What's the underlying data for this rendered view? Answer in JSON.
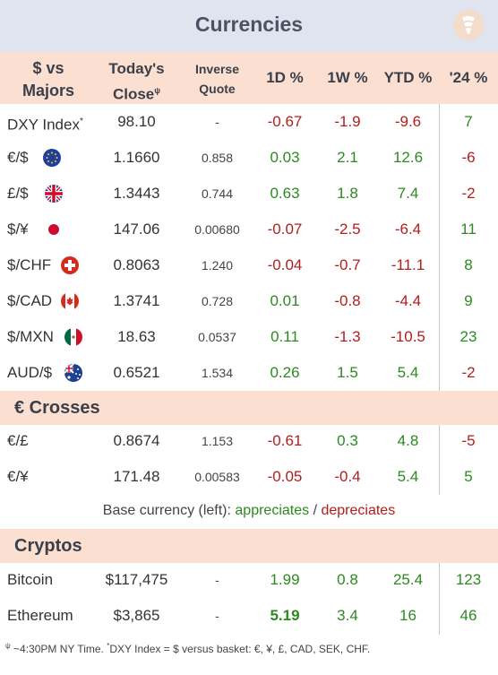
{
  "title": "Currencies",
  "headers": {
    "pair_line1": "$ vs",
    "pair_line2": "Majors",
    "close_line1": "Today's",
    "close_line2": "Close",
    "close_mark": "ψ",
    "inverse_line1": "Inverse",
    "inverse_line2": "Quote",
    "d1": "1D %",
    "w1": "1W %",
    "ytd": "YTD %",
    "y24": "'24 %"
  },
  "majors": [
    {
      "name": "DXY Index",
      "mark": "*",
      "flag": "",
      "close": "98.10",
      "inverse": "-",
      "d1": "-0.67",
      "w1": "-1.9",
      "ytd": "-9.6",
      "y24": "7"
    },
    {
      "name": "€/$",
      "mark": "",
      "flag": "eu-flag-icon",
      "close": "1.1660",
      "inverse": "0.858",
      "d1": "0.03",
      "w1": "2.1",
      "ytd": "12.6",
      "y24": "-6"
    },
    {
      "name": "£/$",
      "mark": "",
      "flag": "uk-flag-icon",
      "close": "1.3443",
      "inverse": "0.744",
      "d1": "0.63",
      "w1": "1.8",
      "ytd": "7.4",
      "y24": "-2"
    },
    {
      "name": "$/¥",
      "mark": "",
      "flag": "japan-flag-icon",
      "close": "147.06",
      "inverse": "0.00680",
      "d1": "-0.07",
      "w1": "-2.5",
      "ytd": "-6.4",
      "y24": "11"
    },
    {
      "name": "$/CHF",
      "mark": "",
      "flag": "swiss-flag-icon",
      "close": "0.8063",
      "inverse": "1.240",
      "d1": "-0.04",
      "w1": "-0.7",
      "ytd": "-11.1",
      "y24": "8"
    },
    {
      "name": "$/CAD",
      "mark": "",
      "flag": "canada-flag-icon",
      "close": "1.3741",
      "inverse": "0.728",
      "d1": "0.01",
      "w1": "-0.8",
      "ytd": "-4.4",
      "y24": "9"
    },
    {
      "name": "$/MXN",
      "mark": "",
      "flag": "mexico-flag-icon",
      "close": "18.63",
      "inverse": "0.0537",
      "d1": "0.11",
      "w1": "-1.3",
      "ytd": "-10.5",
      "y24": "23"
    },
    {
      "name": "AUD/$",
      "mark": "",
      "flag": "australia-flag-icon",
      "close": "0.6521",
      "inverse": "1.534",
      "d1": "0.26",
      "w1": "1.5",
      "ytd": "5.4",
      "y24": "-2"
    }
  ],
  "euro_crosses_title": "€ Crosses",
  "euro_crosses": [
    {
      "name": "€/£",
      "close": "0.8674",
      "inverse": "1.153",
      "d1": "-0.61",
      "w1": "0.3",
      "ytd": "4.8",
      "y24": "-5"
    },
    {
      "name": "€/¥",
      "close": "171.48",
      "inverse": "0.00583",
      "d1": "-0.05",
      "w1": "-0.4",
      "ytd": "5.4",
      "y24": "5"
    }
  ],
  "legend": {
    "prefix": "Base currency (left): ",
    "appreciates": "appreciates",
    "separator": " / ",
    "depreciates": "depreciates"
  },
  "cryptos_title": "Cryptos",
  "cryptos": [
    {
      "name": "Bitcoin",
      "close": "$117,475",
      "inverse": "-",
      "d1": "1.99",
      "w1": "0.8",
      "ytd": "25.4",
      "y24": "123"
    },
    {
      "name": "Ethereum",
      "close": "$3,865",
      "inverse": "-",
      "d1": "5.19",
      "w1": "3.4",
      "ytd": "16",
      "y24": "46"
    }
  ],
  "footnote": {
    "mark1": "ψ",
    "text1": " ~4:30PM NY Time.   ",
    "mark2": "*",
    "text2": "DXY Index = $ versus basket: €, ¥, £, CAD, SEK, CHF."
  },
  "colors": {
    "positive": "#2b8a1f",
    "negative": "#b51c1c",
    "header_bg": "#fbe0d2",
    "title_bg": "#e0e4ef"
  }
}
